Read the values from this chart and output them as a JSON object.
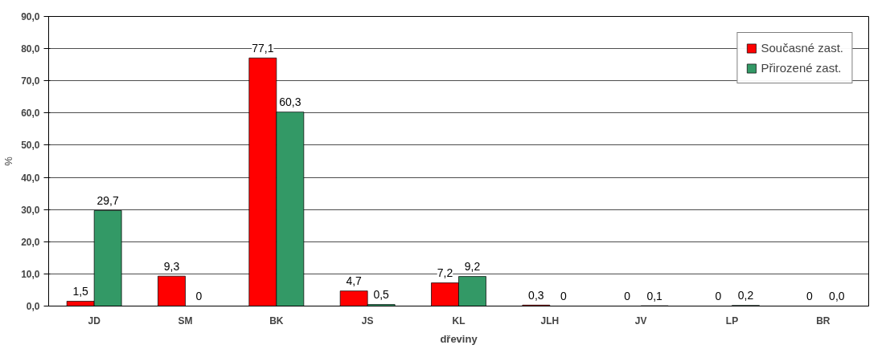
{
  "chart_data": {
    "type": "bar",
    "xlabel": "dřeviny",
    "ylabel": "%",
    "categories": [
      "JD",
      "SM",
      "BK",
      "JS",
      "KL",
      "JLH",
      "JV",
      "LP",
      "BR"
    ],
    "series": [
      {
        "name": "Současné zast.",
        "color": "#ff0000",
        "values": [
          1.5,
          9.3,
          77.1,
          4.7,
          7.2,
          0.3,
          0,
          0,
          0
        ],
        "value_labels": [
          "1,5",
          "9,3",
          "77,1",
          "4,7",
          "7,2",
          "0,3",
          "0",
          "0",
          "0"
        ]
      },
      {
        "name": "Přirozené zast.",
        "color": "#339966",
        "values": [
          29.7,
          0,
          60.3,
          0.5,
          9.2,
          0,
          0.1,
          0.2,
          0.0
        ],
        "value_labels": [
          "29,7",
          "0",
          "60,3",
          "0,5",
          "9,2",
          "0",
          "0,1",
          "0,2",
          "0,0"
        ]
      }
    ],
    "ylim": [
      0,
      90
    ],
    "yticks": [
      {
        "value": 0,
        "label": "0,0"
      },
      {
        "value": 10,
        "label": "10,0"
      },
      {
        "value": 20,
        "label": "20,0"
      },
      {
        "value": 30,
        "label": "30,0"
      },
      {
        "value": 40,
        "label": "40,0"
      },
      {
        "value": 50,
        "label": "50,0"
      },
      {
        "value": 60,
        "label": "60,0"
      },
      {
        "value": 70,
        "label": "70,0"
      },
      {
        "value": 80,
        "label": "80,0"
      },
      {
        "value": 90,
        "label": "90,0"
      }
    ],
    "grid": "y",
    "legend": "top right"
  }
}
